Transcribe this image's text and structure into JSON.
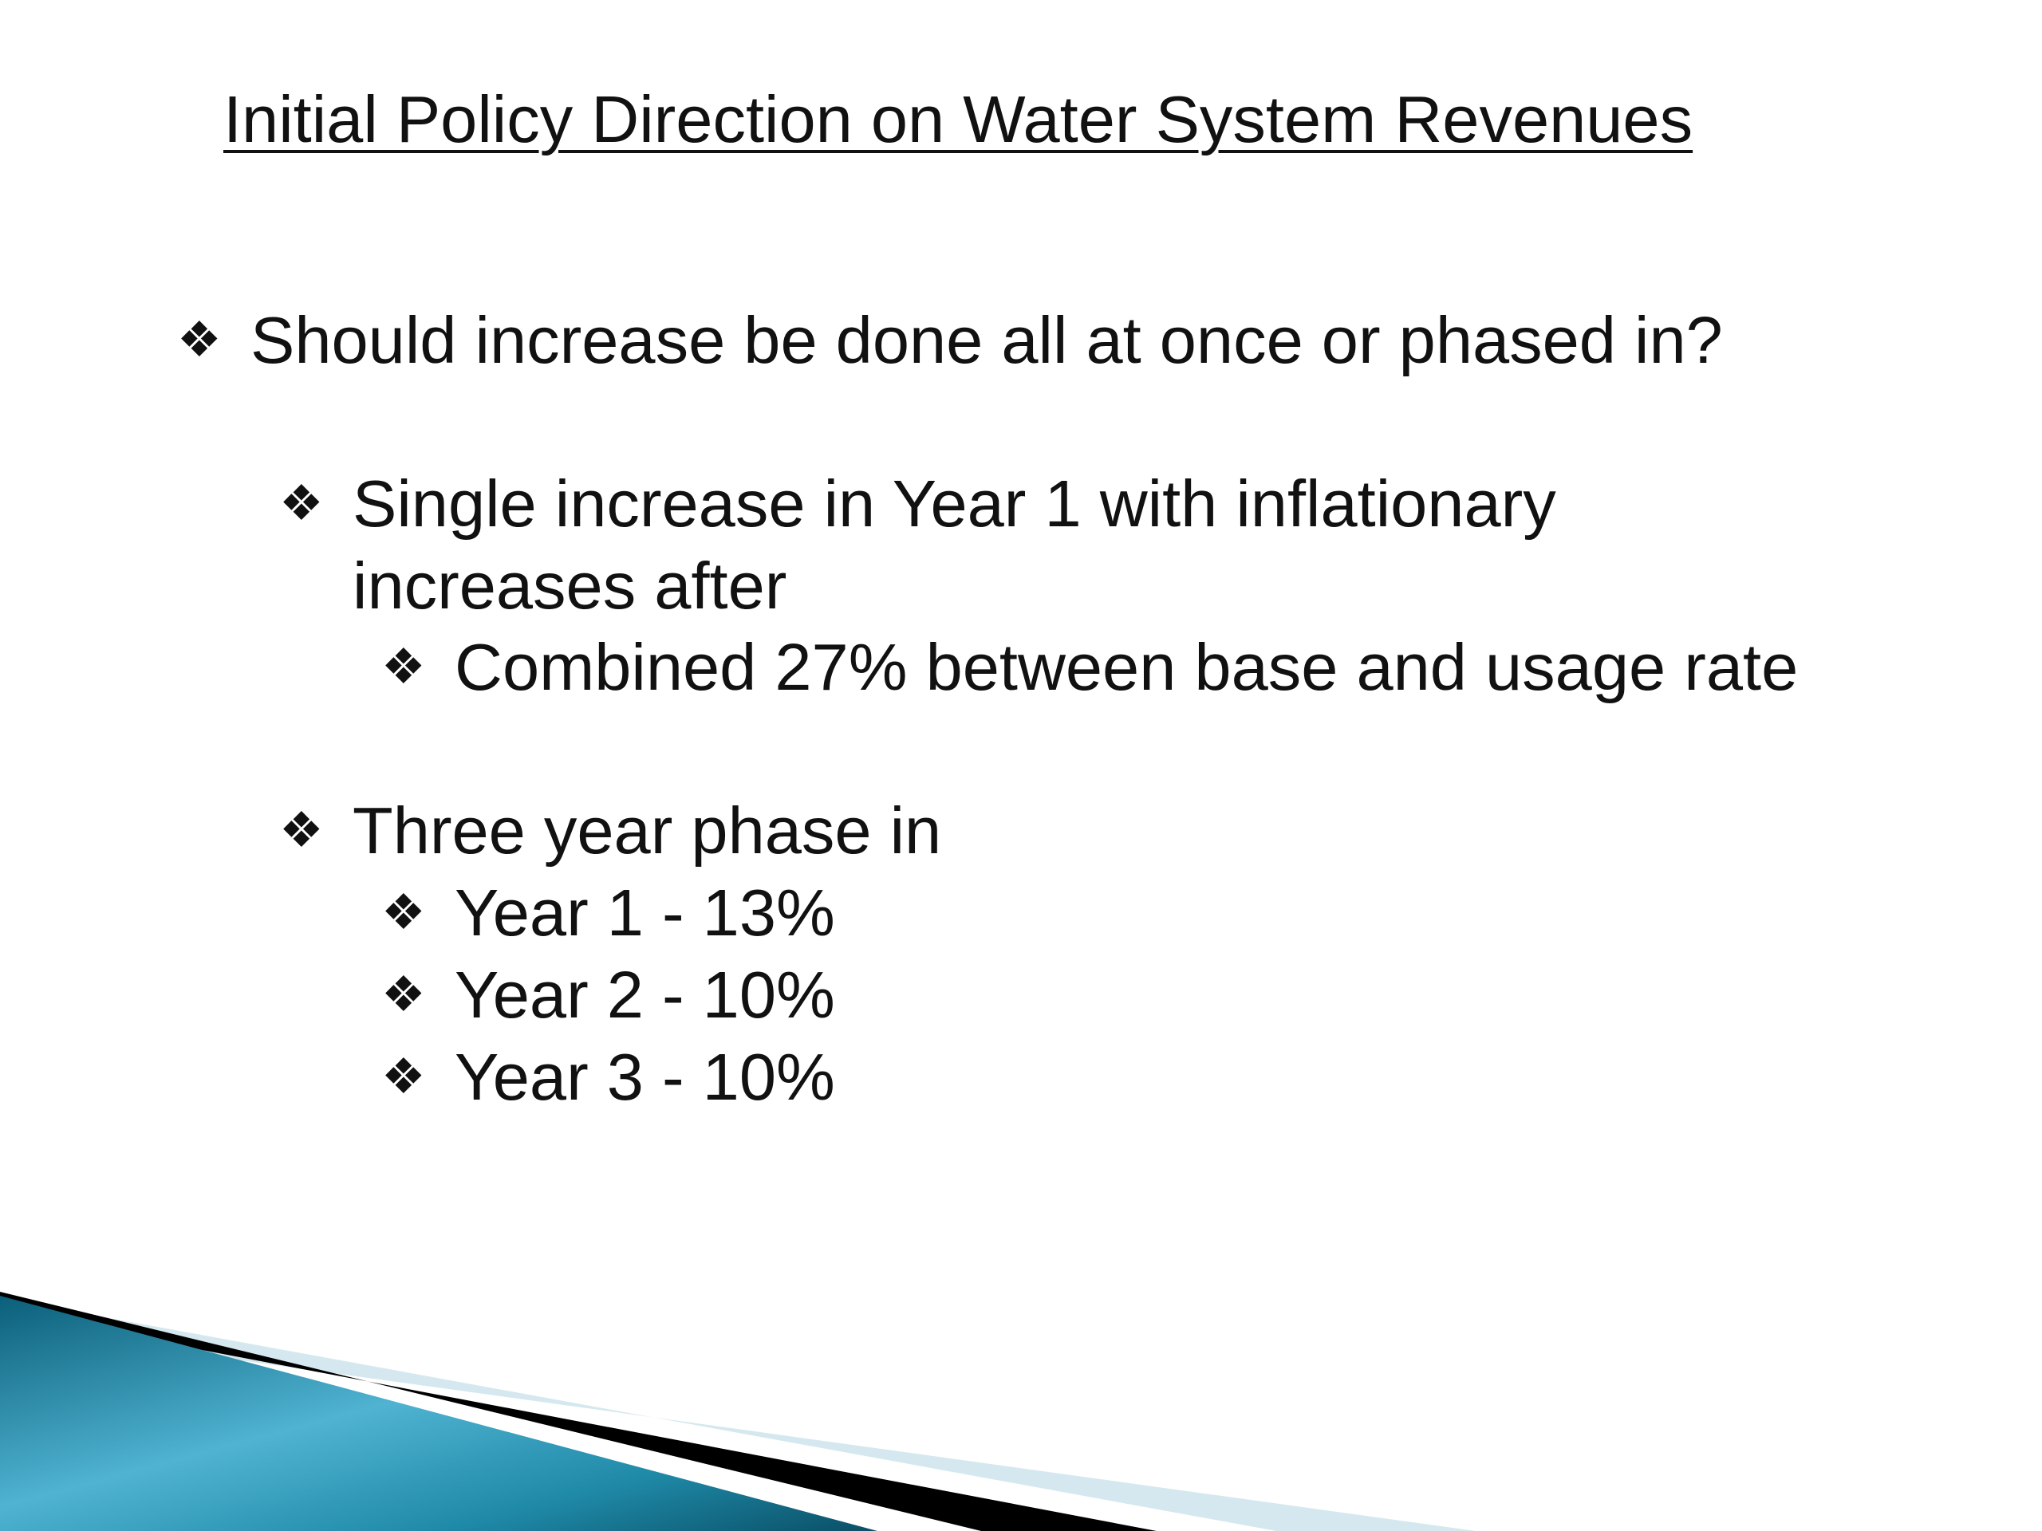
{
  "slide": {
    "title": "Initial Policy Direction on Water System Revenues",
    "bullet_glyph": "❖",
    "bullets": [
      {
        "text": "Should increase be done all at once or phased in?"
      },
      {
        "text_line1": "Single increase in Year 1 with inflationary",
        "text_line2": "increases after"
      },
      {
        "text": "Combined 27% between base and usage rate"
      },
      {
        "text": "Three year phase in"
      },
      {
        "text": "Year 1 - 13%"
      },
      {
        "text": "Year 2 - 10%"
      },
      {
        "text": "Year 3 - 10%"
      }
    ]
  },
  "theme": {
    "accent_dark": "#0d6f8c",
    "accent_light": "#5bbcd8",
    "stripe_pale": "#d6e8ef",
    "stripe_dark": "#000000"
  }
}
